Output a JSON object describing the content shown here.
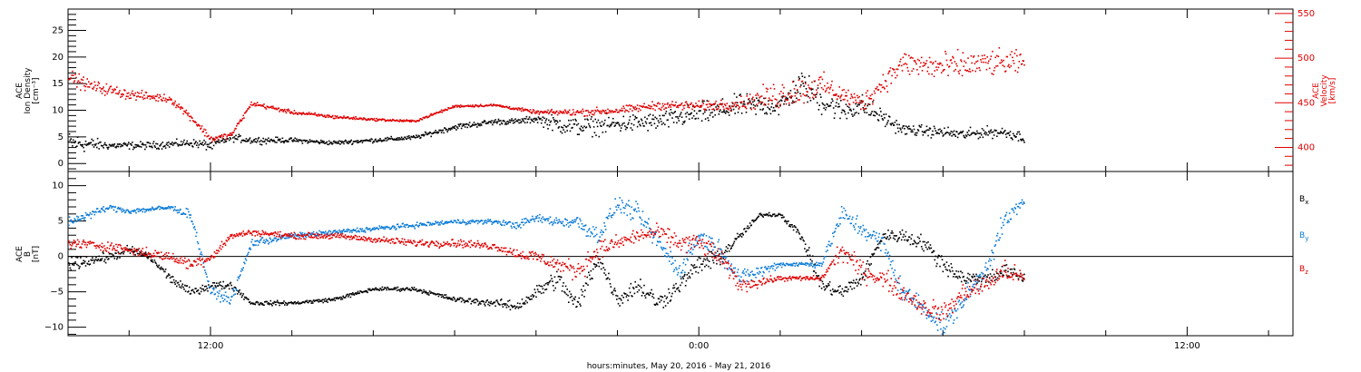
{
  "x_axis": {
    "title": "hours:minutes, May 20, 2016 - May 21, 2016",
    "tick_labels": [
      {
        "label": "12:00",
        "hours": 12
      },
      {
        "label": "0:00",
        "hours": 24
      },
      {
        "label": "12:00",
        "hours": 36
      }
    ],
    "range_hours": [
      8.5,
      38.6
    ],
    "data_end_hours": 32.0,
    "minor_tick_step_hours": 2
  },
  "colors": {
    "black": "#000000",
    "red": "#e00000",
    "blue": "#0a7ad6",
    "axis": "#000000"
  },
  "chart_data": [
    {
      "type": "scatter",
      "title": "",
      "ylabel": [
        "ACE",
        "Ion Density",
        "[cm⁻³]"
      ],
      "ylim": [
        -1.5,
        29
      ],
      "y_ticks": [
        0,
        5,
        10,
        15,
        20,
        25
      ],
      "y_tick_labels": [
        "0",
        "5",
        "10",
        "15",
        "20",
        "25"
      ],
      "y2label": [
        "ACE",
        "Velocity",
        "[km/s]"
      ],
      "y2lim": [
        373,
        555
      ],
      "y2_ticks": [
        400,
        450,
        500,
        550
      ],
      "y2_tick_labels": [
        "400",
        "450",
        "500",
        "550"
      ],
      "series": [
        {
          "axis": "left",
          "color": "black",
          "hours": [
            8.5,
            9.5,
            10.5,
            11.5,
            12.0,
            12.5,
            13.0,
            14.0,
            15.0,
            16.0,
            17.0,
            18.0,
            19.0,
            19.5,
            20.0,
            20.5,
            21.0,
            22.0,
            23.0,
            24.0,
            24.5,
            25.0,
            25.5,
            26.0,
            26.5,
            27.0,
            27.5,
            28.0,
            29.0,
            30.0,
            30.5,
            31.0,
            31.5,
            32.0
          ],
          "values": [
            4,
            3.5,
            3.5,
            4,
            3.5,
            5,
            4.5,
            4.5,
            4,
            4.5,
            5,
            7,
            8,
            8,
            8.5,
            7.5,
            7,
            7.5,
            8,
            9.5,
            10,
            11,
            11,
            11,
            15,
            12,
            10,
            11,
            6.5,
            6,
            5.5,
            6,
            6,
            5
          ],
          "scatter": [
            3,
            1,
            1,
            1,
            1.5,
            1,
            1,
            0.6,
            0.6,
            0.6,
            0.6,
            0.8,
            0.8,
            0.8,
            1,
            2.5,
            2.5,
            2.5,
            2.5,
            3,
            3,
            3,
            3,
            3,
            4,
            4,
            3,
            3,
            1.5,
            1.5,
            1.5,
            1.5,
            1.5,
            1.5
          ]
        },
        {
          "axis": "right",
          "color": "red",
          "hours": [
            8.5,
            9.0,
            10.0,
            11.0,
            11.5,
            12.0,
            12.5,
            13.0,
            14.0,
            15.0,
            16.0,
            17.0,
            18.0,
            19.0,
            20.0,
            21.0,
            22.0,
            23.0,
            24.0,
            25.0,
            26.0,
            27.0,
            27.5,
            28.0,
            29.0,
            30.0,
            31.0,
            32.0
          ],
          "values": [
            480,
            470,
            460,
            455,
            435,
            410,
            415,
            450,
            440,
            435,
            432,
            430,
            447,
            448,
            440,
            440,
            442,
            448,
            447,
            450,
            460,
            470,
            460,
            450,
            495,
            490,
            495,
            495
          ],
          "scatter": [
            12,
            10,
            8,
            6,
            6,
            6,
            4,
            4,
            3,
            3,
            2,
            2,
            2,
            2,
            3,
            6,
            6,
            7,
            8,
            10,
            25,
            20,
            15,
            15,
            20,
            25,
            20,
            20
          ]
        }
      ]
    },
    {
      "type": "scatter",
      "title": "",
      "ylabel": [
        "ACE",
        "B",
        "[nT]"
      ],
      "ylim": [
        -11.2,
        12
      ],
      "y_ticks": [
        -10,
        -5,
        0,
        5,
        10
      ],
      "y_tick_labels": [
        "−10",
        "−5",
        "0",
        "5",
        "10"
      ],
      "legend": [
        {
          "name": "B",
          "sub": "x",
          "color": "black"
        },
        {
          "name": "B",
          "sub": "y",
          "color": "blue"
        },
        {
          "name": "B",
          "sub": "z",
          "color": "red"
        }
      ],
      "series": [
        {
          "name": "Bx",
          "color": "black",
          "hours": [
            8.5,
            9.5,
            10.0,
            10.5,
            11.0,
            11.5,
            12.0,
            12.5,
            13.0,
            14.0,
            15.0,
            16.0,
            17.0,
            18.0,
            19.0,
            19.5,
            20.0,
            20.5,
            21.0,
            21.5,
            22.0,
            22.5,
            23.0,
            23.5,
            24.0,
            24.5,
            25.0,
            25.5,
            26.0,
            26.5,
            27.0,
            27.5,
            28.0,
            28.5,
            29.0,
            29.5,
            30.0,
            30.5,
            31.0,
            31.5,
            32.0
          ],
          "values": [
            -1,
            0,
            1,
            0,
            -3,
            -5,
            -4,
            -4,
            -6.5,
            -6.5,
            -6,
            -4.5,
            -4.5,
            -6,
            -6.5,
            -7,
            -5,
            -3,
            -7,
            0,
            -6,
            -4,
            -6.5,
            -4,
            -1,
            0,
            3,
            6,
            6,
            3,
            -4,
            -5,
            -3,
            3,
            3,
            2,
            -1,
            -3,
            -3,
            -2,
            -3
          ],
          "scatter": [
            1.2,
            1,
            1,
            1,
            1,
            0.8,
            0.8,
            0.8,
            0.5,
            0.4,
            0.4,
            0.4,
            0.4,
            0.5,
            0.8,
            1,
            1.5,
            2,
            2,
            2,
            1.5,
            2,
            2,
            1.5,
            2,
            2,
            1,
            0.4,
            0.5,
            1,
            1.5,
            1.5,
            1.5,
            1,
            1.5,
            1.5,
            2,
            1.5,
            1.5,
            1.5,
            1.5
          ]
        },
        {
          "name": "By",
          "color": "blue",
          "hours": [
            8.5,
            9.5,
            10.0,
            11.0,
            11.5,
            12.0,
            12.5,
            13.0,
            14.0,
            15.0,
            16.0,
            17.0,
            18.0,
            19.0,
            19.5,
            20.0,
            20.5,
            21.0,
            21.5,
            22.0,
            22.5,
            23.0,
            23.5,
            24.0,
            24.5,
            25.0,
            25.5,
            26.0,
            26.5,
            27.0,
            27.5,
            28.0,
            28.5,
            29.0,
            29.5,
            30.0,
            30.5,
            31.0,
            31.5,
            32.0
          ],
          "values": [
            5,
            7,
            6.5,
            7,
            6,
            -5,
            -6,
            2,
            3,
            3.5,
            4,
            4.5,
            5,
            5,
            4.5,
            5.5,
            5,
            5,
            3,
            7.5,
            6,
            2,
            -2,
            3,
            1,
            -3,
            -2,
            -1,
            -1,
            -1,
            6,
            4,
            2,
            -5,
            -7,
            -10,
            -6,
            -2,
            5,
            8
          ],
          "scatter": [
            1,
            0.6,
            0.6,
            0.5,
            1,
            1,
            1,
            1,
            0.5,
            0.5,
            0.5,
            0.5,
            0.5,
            0.5,
            0.8,
            0.8,
            1,
            1.5,
            2,
            1.5,
            2,
            2,
            2,
            2,
            2,
            1.5,
            1.5,
            0.5,
            0.6,
            0.6,
            2,
            2,
            2,
            2,
            2,
            2,
            2,
            2,
            2,
            1.5
          ]
        },
        {
          "name": "Bz",
          "color": "red",
          "hours": [
            8.5,
            9.5,
            10.0,
            11.0,
            11.5,
            12.0,
            12.5,
            13.0,
            14.0,
            15.0,
            16.0,
            17.0,
            18.0,
            19.0,
            19.5,
            20.0,
            20.5,
            21.0,
            21.5,
            22.0,
            22.5,
            23.0,
            23.5,
            24.0,
            24.5,
            25.0,
            25.5,
            26.0,
            26.5,
            27.0,
            27.5,
            28.0,
            28.5,
            29.0,
            29.5,
            30.0,
            30.5,
            31.0,
            31.5,
            32.0
          ],
          "values": [
            2,
            1.5,
            1,
            0,
            -1,
            0,
            3,
            3.5,
            3,
            3,
            2.5,
            2,
            2,
            1.5,
            0.5,
            0,
            -1,
            -2,
            1,
            2,
            3,
            3.5,
            2,
            2,
            0,
            -4,
            -3.5,
            -3,
            -3,
            -3,
            1,
            -2,
            -3,
            -5,
            -7,
            -8,
            -5,
            -4,
            -2,
            -3
          ],
          "scatter": [
            1,
            1,
            1,
            1,
            1.2,
            1.2,
            0.6,
            0.6,
            0.6,
            0.6,
            0.6,
            0.8,
            0.8,
            0.8,
            1,
            1.5,
            1.5,
            2,
            2,
            1.5,
            1.5,
            1.5,
            2,
            2,
            2,
            1.5,
            1,
            0.5,
            0.5,
            0.5,
            2,
            2,
            2,
            2,
            2,
            2,
            2,
            2,
            2,
            1.5
          ]
        }
      ]
    }
  ]
}
